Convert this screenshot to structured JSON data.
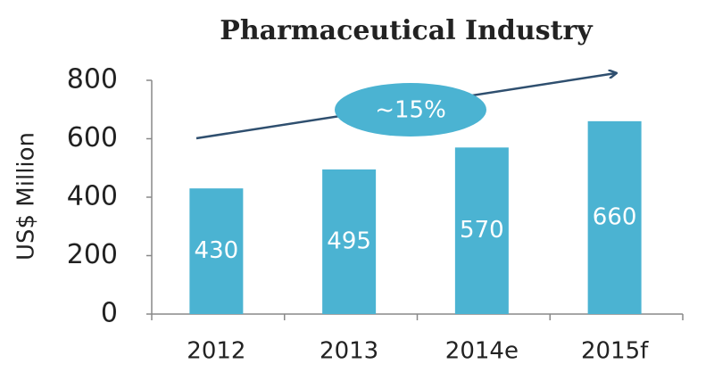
{
  "chart_data": {
    "type": "bar",
    "title": "Pharmaceutical Industry",
    "y_label": "US$ Million",
    "categories": [
      "2012",
      "2013",
      "2014e",
      "2015f"
    ],
    "values": [
      430,
      495,
      570,
      660
    ],
    "color": "#4bb3d2",
    "ylim": [
      0,
      800
    ],
    "yticks": [
      0,
      200,
      400,
      600,
      800
    ],
    "annotation": "~15%"
  }
}
